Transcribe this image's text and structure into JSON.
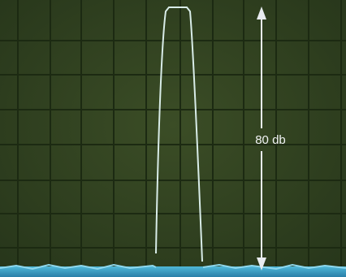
{
  "annotation": "80 db"
}
